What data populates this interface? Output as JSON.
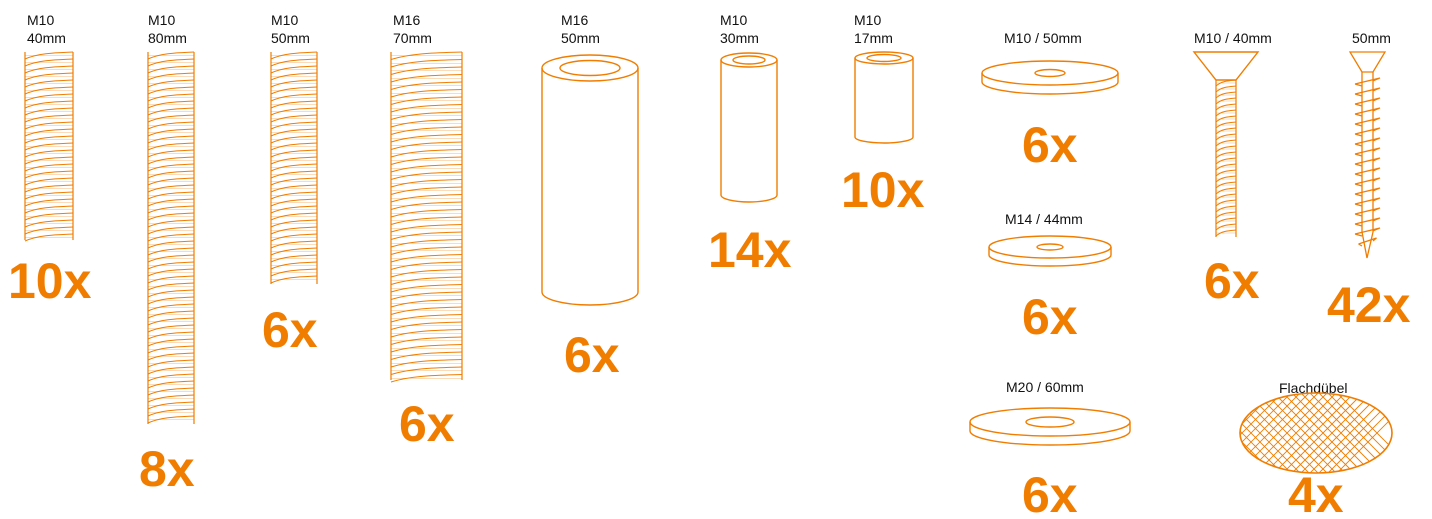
{
  "colors": {
    "accent": "#f07d00",
    "label": "#111111",
    "background": "#ffffff"
  },
  "parts": [
    {
      "icon": "threaded-rod-icon",
      "size": "M10",
      "length": "40mm",
      "count": "10x"
    },
    {
      "icon": "threaded-rod-icon",
      "size": "M10",
      "length": "80mm",
      "count": "8x"
    },
    {
      "icon": "threaded-rod-icon",
      "size": "M10",
      "length": "50mm",
      "count": "6x"
    },
    {
      "icon": "threaded-rod-icon",
      "size": "M16",
      "length": "70mm",
      "count": "6x"
    },
    {
      "icon": "sleeve-nut-icon",
      "size": "M16",
      "length": "50mm",
      "count": "6x"
    },
    {
      "icon": "sleeve-nut-icon",
      "size": "M10",
      "length": "30mm",
      "count": "14x"
    },
    {
      "icon": "sleeve-nut-icon",
      "size": "M10",
      "length": "17mm",
      "count": "10x"
    },
    {
      "icon": "washer-icon",
      "label": "M10 / 50mm",
      "count": "6x"
    },
    {
      "icon": "washer-icon",
      "label": "M14 / 44mm",
      "count": "6x"
    },
    {
      "icon": "washer-icon",
      "label": "M20 / 60mm",
      "count": "6x"
    },
    {
      "icon": "countersunk-screw-icon",
      "label": "M10 / 40mm",
      "count": "6x"
    },
    {
      "icon": "wood-screw-icon",
      "label": "50mm",
      "count": "42x"
    },
    {
      "icon": "biscuit-dowel-icon",
      "label": "Flachdübel",
      "count": "4x"
    }
  ]
}
